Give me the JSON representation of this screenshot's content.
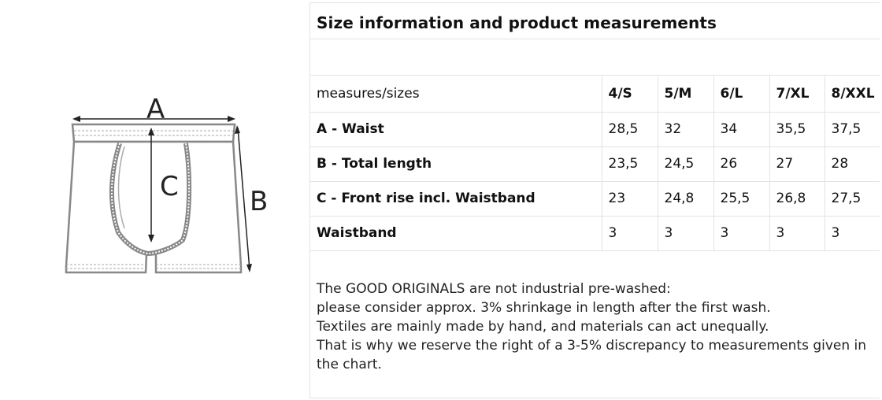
{
  "diagram": {
    "label_a": "A",
    "label_b": "B",
    "label_c": "C"
  },
  "title": "Size information and product measurements",
  "table": {
    "header_label": "measures/sizes",
    "sizes": [
      "4/S",
      "5/M",
      "6/L",
      "7/XL",
      "8/XXL"
    ],
    "rows": [
      {
        "label": "A - Waist",
        "values": [
          "28,5",
          "32",
          "34",
          "35,5",
          "37,5"
        ]
      },
      {
        "label": "B - Total length",
        "values": [
          "23,5",
          "24,5",
          "26",
          "27",
          "28"
        ]
      },
      {
        "label": "C - Front rise incl. Waistband",
        "values": [
          "23",
          "24,8",
          "25,5",
          "26,8",
          "27,5"
        ]
      },
      {
        "label": "Waistband",
        "values": [
          "3",
          "3",
          "3",
          "3",
          "3"
        ]
      }
    ]
  },
  "notes": [
    "The GOOD ORIGINALS are not industrial pre-washed:",
    "please consider approx. 3% shrinkage in length after the first wash.",
    "Textiles are mainly made by hand, and materials can act unequally.",
    "That is why we reserve the right of a 3-5% discrepancy to measurements given in the chart."
  ]
}
